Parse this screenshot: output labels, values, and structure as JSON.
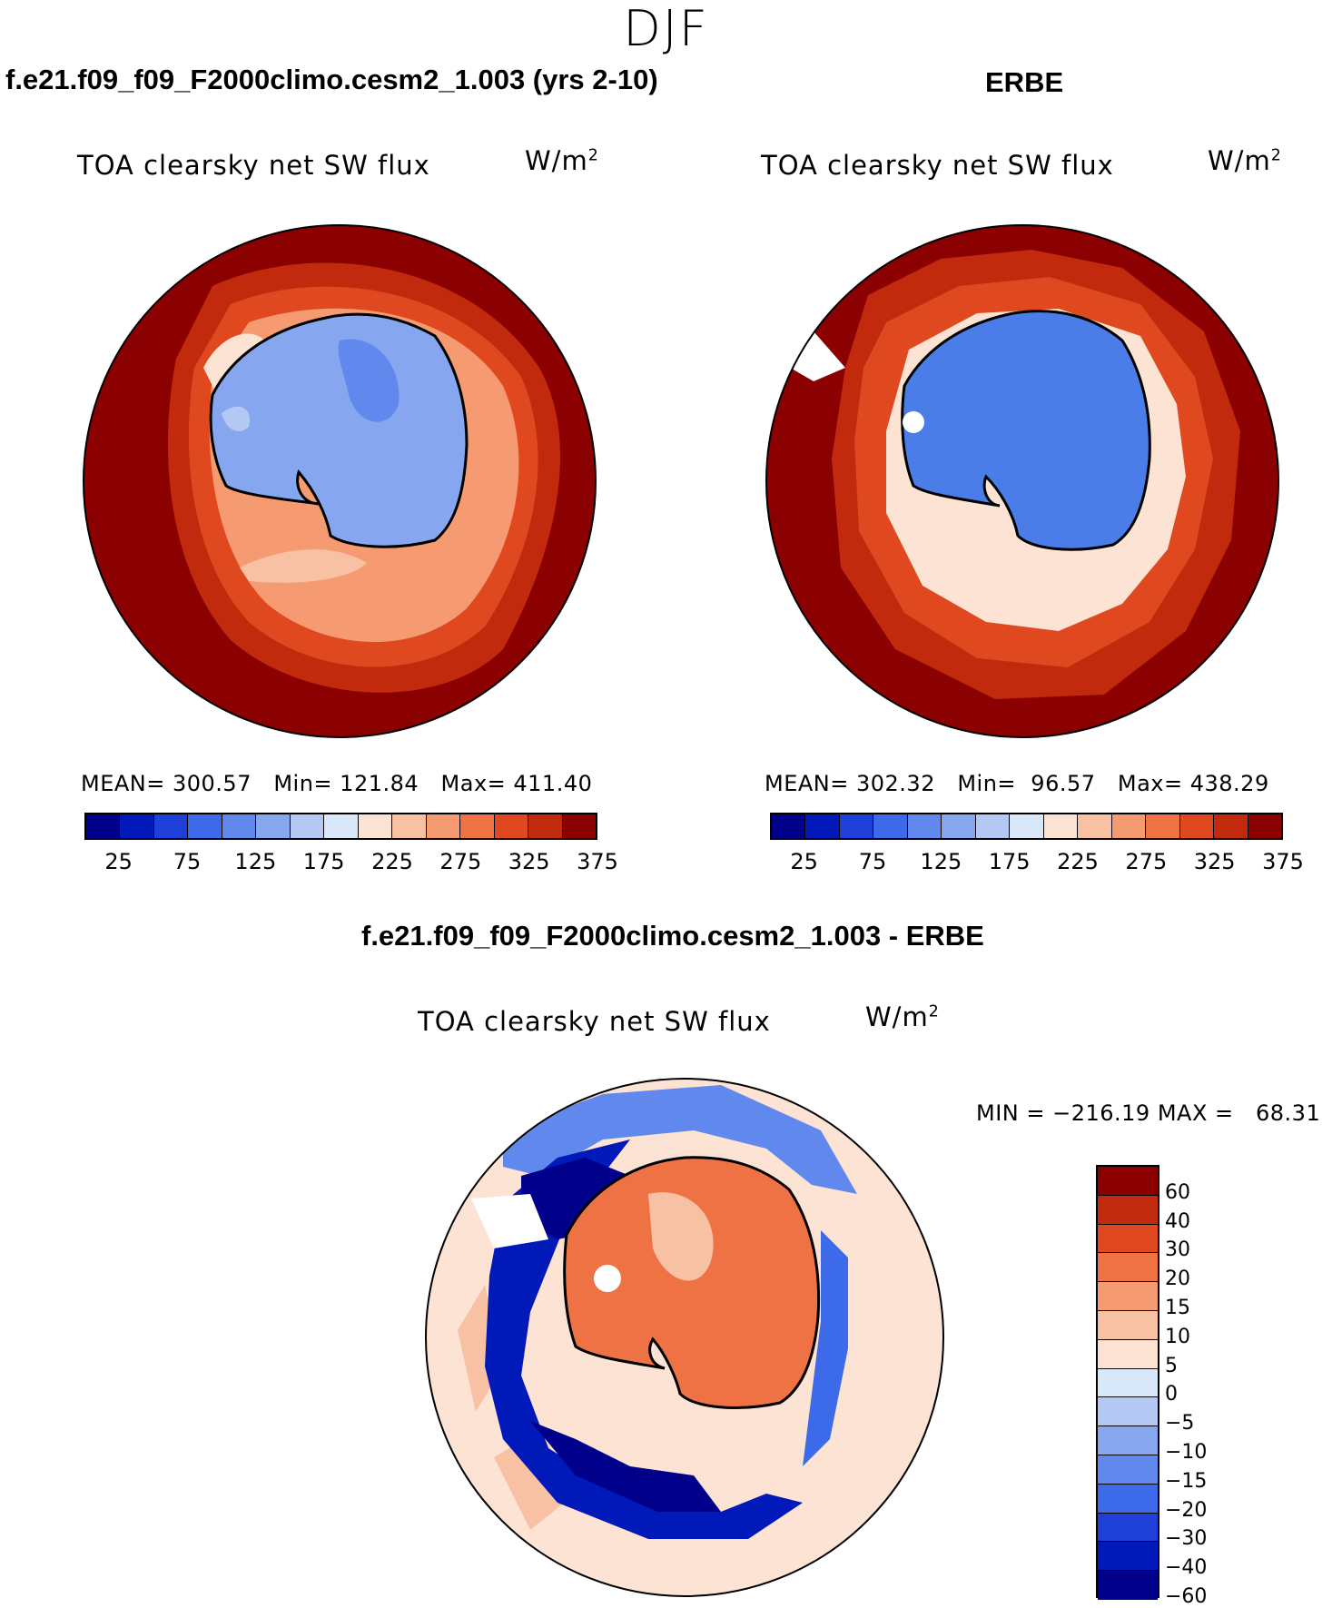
{
  "figure": {
    "season": "DJF",
    "panels": [
      {
        "case_title": "f.e21.f09_f09_F2000climo.cesm2_1.003 (yrs 2-10)",
        "variable": "TOA clearsky net SW flux",
        "units_base": "W/m",
        "units_exp": "2",
        "stats": "MEAN= 300.57   Min= 121.84   Max= 411.40"
      },
      {
        "case_title": "ERBE",
        "variable": "TOA clearsky net SW flux",
        "units_base": "W/m",
        "units_exp": "2",
        "stats": "MEAN= 302.32   Min=  96.57   Max= 438.29"
      }
    ],
    "diff_panel": {
      "case_title": "f.e21.f09_f09_F2000climo.cesm2_1.003 - ERBE",
      "variable": "TOA clearsky net SW flux",
      "units_base": "W/m",
      "units_exp": "2",
      "stats": "MIN = −216.19 MAX =   68.31"
    }
  },
  "colorbars": {
    "abs_colors": [
      "#00008b",
      "#0019b8",
      "#1f3fd9",
      "#3c6ae8",
      "#6188ec",
      "#86a7ef",
      "#b3c8f3",
      "#d9e8f9",
      "#fce3d3",
      "#f8c1a4",
      "#f69a72",
      "#ef7244",
      "#e0491f",
      "#c12a0d",
      "#8b0000"
    ],
    "abs_ticks": [
      "25",
      "75",
      "125",
      "175",
      "225",
      "275",
      "325",
      "375"
    ],
    "diff_colors": [
      "#8b0000",
      "#c12a0d",
      "#e0491f",
      "#ef7244",
      "#f69a72",
      "#f8c1a4",
      "#fce3d3",
      "#d9e8f9",
      "#b3c8f3",
      "#86a7ef",
      "#6188ec",
      "#3c6ae8",
      "#1f3fd9",
      "#0019b8",
      "#00008b"
    ],
    "diff_labels": [
      "60",
      "40",
      "30",
      "20",
      "15",
      "10",
      "5",
      "0",
      "−5",
      "−10",
      "−15",
      "−20",
      "−30",
      "−40",
      "−60"
    ]
  },
  "colors": {
    "ocean_model": "#8b0000",
    "antarctica_model": "#86a7ef",
    "antarctica_obs": "#4a7de8",
    "diff_background": "#fce3d3",
    "diff_interior": "#ef7244",
    "diff_ring": "#00008b"
  }
}
